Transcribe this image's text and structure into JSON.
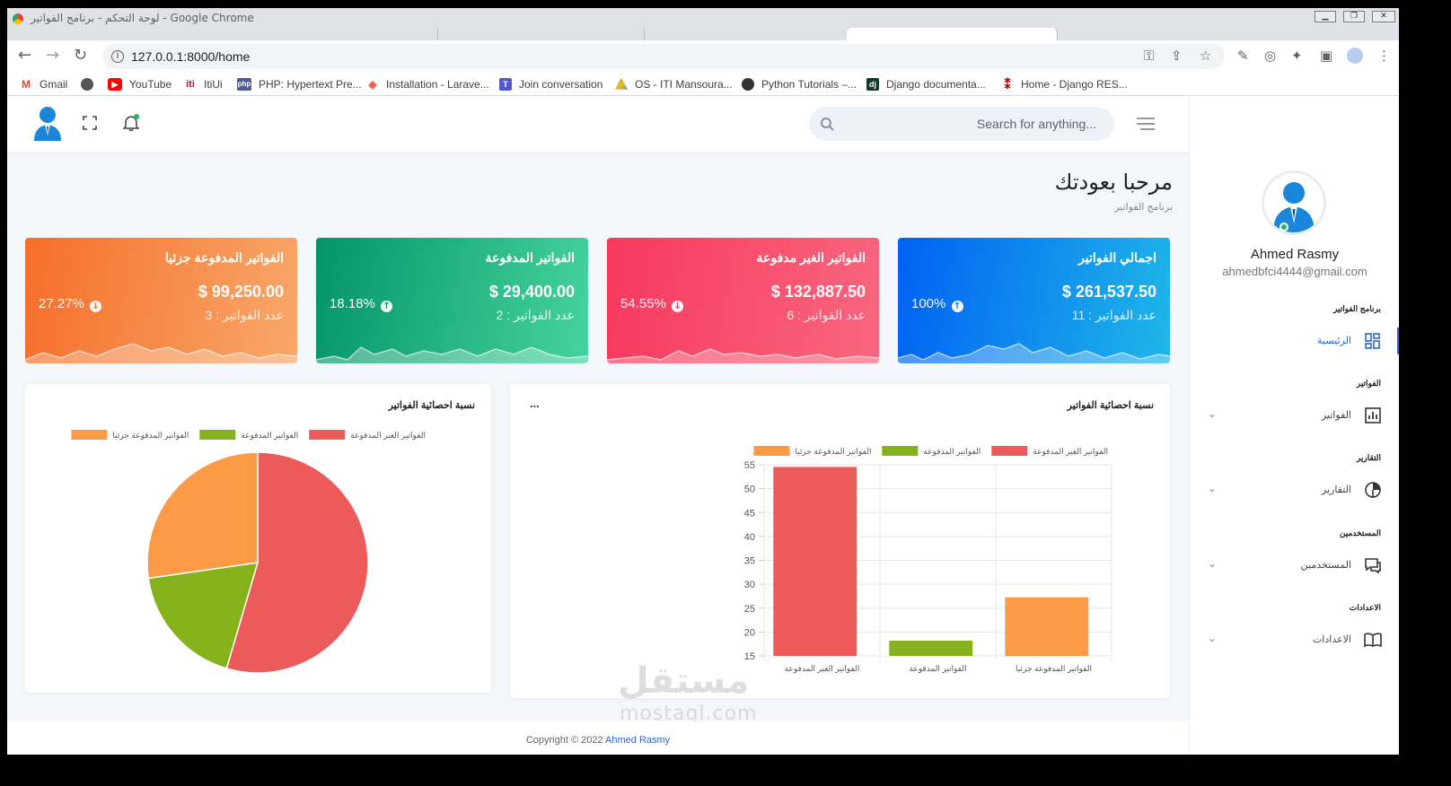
{
  "browser": {
    "window_title": "لوحة التحكم - برنامج الفواتير - Google Chrome",
    "url": "127.0.0.1:8000/home",
    "bookmarks": [
      "Gmail",
      "YouTube",
      "ItiUi",
      "PHP: Hypertext Pre...",
      "Installation - Larave...",
      "Join conversation",
      "OS - ITI Mansoura...",
      "Python Tutorials –...",
      "Django documenta...",
      "Home - Django RES..."
    ]
  },
  "header": {
    "search_placeholder": "Search for anything..."
  },
  "user": {
    "name": "Ahmed Rasmy",
    "email": "ahmedbfci4444@gmail.com"
  },
  "sidebar": {
    "sections": [
      {
        "title": "برنامج الفواتير",
        "item": "الرئيسية",
        "icon": "dashboard-icon",
        "active": true
      },
      {
        "title": "الفواتير",
        "item": "الفواتير",
        "icon": "bar-chart-icon"
      },
      {
        "title": "التقارير",
        "item": "التقارير",
        "icon": "pie-chart-icon"
      },
      {
        "title": "المستخدمين",
        "item": "المستخدمين",
        "icon": "chat-icon"
      },
      {
        "title": "الاعدادات",
        "item": "الاعدادات",
        "icon": "book-icon"
      }
    ]
  },
  "welcome": {
    "title": "مرحبا بعودتك",
    "subtitle": "برنامج الفواتير"
  },
  "cards": [
    {
      "title": "اجمالي الفواتير",
      "amount": "$ 261,537.50",
      "count": "عدد الفواتير : 11",
      "percent": "100%",
      "trend": "up",
      "color_from": "#0061f2",
      "color_to": "#1fb7e8"
    },
    {
      "title": "الفواتير الغير مدفوعة",
      "amount": "$ 132,887.50",
      "count": "عدد الفواتير : 6",
      "percent": "54.55%",
      "trend": "down",
      "color_from": "#f7385e",
      "color_to": "#f8677f"
    },
    {
      "title": "الفواتير المدفوعة",
      "amount": "$ 29,400.00",
      "count": "عدد الفواتير : 2",
      "percent": "18.18%",
      "trend": "up",
      "color_from": "#049467",
      "color_to": "#46d39f"
    },
    {
      "title": "الفواتير المدفوعة جزئيا",
      "amount": "$ 99,250.00",
      "count": "عدد الفواتير : 3",
      "percent": "27.27%",
      "trend": "down",
      "color_from": "#f66e2a",
      "color_to": "#f7a86a"
    }
  ],
  "colors": {
    "unpaid": "#ec5a5a",
    "paid": "#85b21a",
    "partial": "#fd9a45",
    "accent": "#2a64d8"
  },
  "bar_panel": {
    "title": "نسبة احصائية الفواتير",
    "menu": "..."
  },
  "pie_panel": {
    "title": "نسبة احصائية الفواتير"
  },
  "chart_data": [
    {
      "type": "bar",
      "title": "نسبة احصائية الفواتير",
      "categories": [
        "الفواتير الغير المدفوعة",
        "الفواتير المدفوعة",
        "الفواتير المدفوعة جزئيا"
      ],
      "series": [
        {
          "name": "الفواتير الغير المدفوعة",
          "values": [
            54.55,
            null,
            null
          ]
        },
        {
          "name": "الفواتير المدفوعة",
          "values": [
            null,
            18.18,
            null
          ]
        },
        {
          "name": "الفواتير المدفوعة جزئيا",
          "values": [
            null,
            null,
            27.27
          ]
        }
      ],
      "ylim": [
        15,
        55
      ],
      "yticks": [
        15,
        20,
        25,
        30,
        35,
        40,
        45,
        50,
        55
      ],
      "legend": "top",
      "grid": true
    },
    {
      "type": "pie",
      "title": "نسبة احصائية الفواتير",
      "labels": [
        "الفواتير الغير المدفوعة",
        "الفواتير المدفوعة",
        "الفواتير المدفوعة جزئيا"
      ],
      "values": [
        54.55,
        18.18,
        27.27
      ],
      "legend": "top"
    }
  ],
  "footer": {
    "text": "Copyright © 2022",
    "author": "Ahmed Rasmy"
  },
  "watermark": {
    "arabic": "مستقل",
    "latin": "mostaql.com"
  }
}
